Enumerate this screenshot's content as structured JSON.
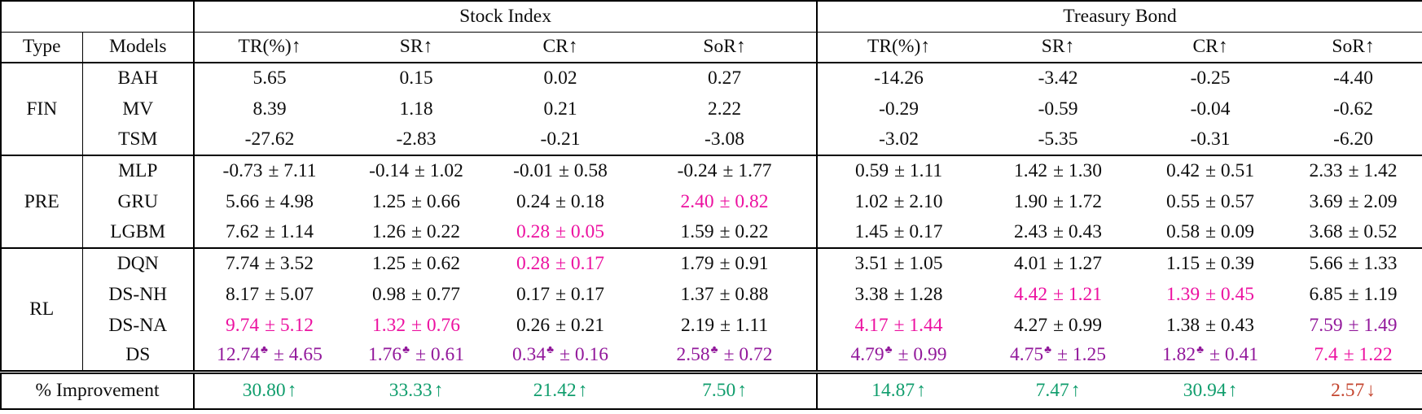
{
  "colors": {
    "best": "#92189B",
    "second": "#EC11A0",
    "pos": "#0F9D6C",
    "neg": "#C4452F",
    "text": "#0E0E0E",
    "border": "#000000",
    "background": "#FFFFFF"
  },
  "table": {
    "corner": "",
    "group_headers": [
      {
        "label": "Stock Index"
      },
      {
        "label": "Treasury Bond"
      }
    ],
    "col_headers": [
      "Type",
      "Models",
      "TR(%)↑",
      "SR↑",
      "CR↑",
      "SoR↑",
      "TR(%)↑",
      "SR↑",
      "CR↑",
      "SoR↑"
    ],
    "groups": [
      {
        "type": "FIN",
        "rows": [
          {
            "model": "BAH",
            "cells": [
              {
                "v": "5.65"
              },
              {
                "v": "0.15"
              },
              {
                "v": "0.02"
              },
              {
                "v": "0.27"
              },
              {
                "v": "-14.26"
              },
              {
                "v": "-3.42"
              },
              {
                "v": "-0.25"
              },
              {
                "v": "-4.40"
              }
            ]
          },
          {
            "model": "MV",
            "cells": [
              {
                "v": "8.39"
              },
              {
                "v": "1.18"
              },
              {
                "v": "0.21"
              },
              {
                "v": "2.22"
              },
              {
                "v": "-0.29"
              },
              {
                "v": "-0.59"
              },
              {
                "v": "-0.04"
              },
              {
                "v": "-0.62"
              }
            ]
          },
          {
            "model": "TSM",
            "cells": [
              {
                "v": "-27.62"
              },
              {
                "v": "-2.83"
              },
              {
                "v": "-0.21"
              },
              {
                "v": "-3.08"
              },
              {
                "v": "-3.02"
              },
              {
                "v": "-5.35"
              },
              {
                "v": "-0.31"
              },
              {
                "v": "-6.20"
              }
            ]
          }
        ]
      },
      {
        "type": "PRE",
        "rows": [
          {
            "model": "MLP",
            "cells": [
              {
                "v": "-0.73",
                "pm": "± 7.11"
              },
              {
                "v": "-0.14",
                "pm": "± 1.02"
              },
              {
                "v": "-0.01",
                "pm": "± 0.58"
              },
              {
                "v": "-0.24",
                "pm": "± 1.77"
              },
              {
                "v": "0.59",
                "pm": "± 1.11"
              },
              {
                "v": "1.42",
                "pm": "± 1.30"
              },
              {
                "v": "0.42",
                "pm": "± 0.51"
              },
              {
                "v": "2.33",
                "pm": "± 1.42"
              }
            ]
          },
          {
            "model": "GRU",
            "cells": [
              {
                "v": "5.66",
                "pm": "± 4.98"
              },
              {
                "v": "1.25",
                "pm": "± 0.66"
              },
              {
                "v": "0.24",
                "pm": "± 0.18"
              },
              {
                "v": "2.40",
                "pm": "± 0.82",
                "c": "second"
              },
              {
                "v": "1.02",
                "pm": "± 2.10"
              },
              {
                "v": "1.90",
                "pm": "± 1.72"
              },
              {
                "v": "0.55",
                "pm": "± 0.57"
              },
              {
                "v": "3.69",
                "pm": "± 2.09"
              }
            ]
          },
          {
            "model": "LGBM",
            "cells": [
              {
                "v": "7.62",
                "pm": "± 1.14"
              },
              {
                "v": "1.26",
                "pm": "± 0.22"
              },
              {
                "v": "0.28",
                "pm": "± 0.05",
                "c": "second"
              },
              {
                "v": "1.59",
                "pm": "± 0.22"
              },
              {
                "v": "1.45",
                "pm": "± 0.17"
              },
              {
                "v": "2.43",
                "pm": "± 0.43"
              },
              {
                "v": "0.58",
                "pm": "± 0.09"
              },
              {
                "v": "3.68",
                "pm": "± 0.52"
              }
            ]
          }
        ]
      },
      {
        "type": "RL",
        "rows": [
          {
            "model": "DQN",
            "cells": [
              {
                "v": "7.74",
                "pm": "± 3.52"
              },
              {
                "v": "1.25",
                "pm": "± 0.62"
              },
              {
                "v": "0.28",
                "pm": "± 0.17",
                "c": "second"
              },
              {
                "v": "1.79",
                "pm": "± 0.91"
              },
              {
                "v": "3.51",
                "pm": "± 1.05"
              },
              {
                "v": "4.01",
                "pm": "± 1.27"
              },
              {
                "v": "1.15",
                "pm": "± 0.39"
              },
              {
                "v": "5.66",
                "pm": "± 1.33"
              }
            ]
          },
          {
            "model": "DS-NH",
            "cells": [
              {
                "v": "8.17",
                "pm": "± 5.07"
              },
              {
                "v": "0.98",
                "pm": "± 0.77"
              },
              {
                "v": "0.17",
                "pm": "± 0.17"
              },
              {
                "v": "1.37",
                "pm": "± 0.88"
              },
              {
                "v": "3.38",
                "pm": "± 1.28"
              },
              {
                "v": "4.42",
                "pm": "± 1.21",
                "c": "second"
              },
              {
                "v": "1.39",
                "pm": "± 0.45",
                "c": "second"
              },
              {
                "v": "6.85",
                "pm": "± 1.19"
              }
            ]
          },
          {
            "model": "DS-NA",
            "cells": [
              {
                "v": "9.74",
                "pm": "± 5.12",
                "c": "second"
              },
              {
                "v": "1.32",
                "pm": "± 0.76",
                "c": "second"
              },
              {
                "v": "0.26",
                "pm": "± 0.21"
              },
              {
                "v": "2.19",
                "pm": "± 1.11"
              },
              {
                "v": "4.17",
                "pm": "± 1.44",
                "c": "second"
              },
              {
                "v": "4.27",
                "pm": "± 0.99"
              },
              {
                "v": "1.38",
                "pm": "± 0.43"
              },
              {
                "v": "7.59",
                "pm": "± 1.49",
                "c": "best"
              }
            ]
          },
          {
            "model": "DS",
            "cells": [
              {
                "v": "12.74",
                "sup": "♣",
                "pm": "± 4.65",
                "c": "best"
              },
              {
                "v": "1.76",
                "sup": "♣",
                "pm": "± 0.61",
                "c": "best"
              },
              {
                "v": "0.34",
                "sup": "♣",
                "pm": "± 0.16",
                "c": "best"
              },
              {
                "v": "2.58",
                "sup": "♣",
                "pm": "± 0.72",
                "c": "best"
              },
              {
                "v": "4.79",
                "sup": "♣",
                "pm": "± 0.99",
                "c": "best"
              },
              {
                "v": "4.75",
                "sup": "♣",
                "pm": "± 1.25",
                "c": "best"
              },
              {
                "v": "1.82",
                "sup": "♣",
                "pm": "± 0.41",
                "c": "best"
              },
              {
                "v": "7.4",
                "pm": "± 1.22",
                "c": "second"
              }
            ]
          }
        ]
      }
    ],
    "improvement": {
      "label": "% Improvement",
      "cells": [
        {
          "v": "30.80",
          "arrow": "↑",
          "c": "pos"
        },
        {
          "v": "33.33",
          "arrow": "↑",
          "c": "pos"
        },
        {
          "v": "21.42",
          "arrow": "↑",
          "c": "pos"
        },
        {
          "v": "7.50",
          "arrow": "↑",
          "c": "pos"
        },
        {
          "v": "14.87",
          "arrow": "↑",
          "c": "pos"
        },
        {
          "v": "7.47",
          "arrow": "↑",
          "c": "pos"
        },
        {
          "v": "30.94",
          "arrow": "↑",
          "c": "pos"
        },
        {
          "v": "2.57",
          "arrow": "↓",
          "c": "neg"
        }
      ]
    }
  }
}
